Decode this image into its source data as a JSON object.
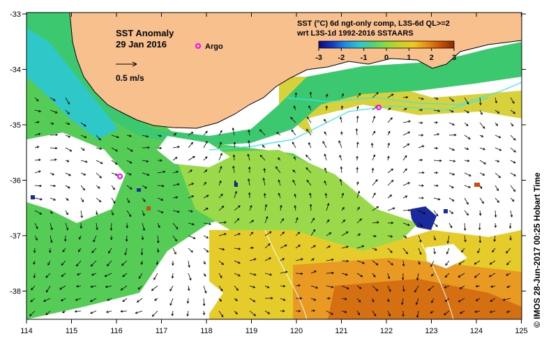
{
  "map": {
    "title": "SST Anomaly",
    "date": "29 Jan 2016",
    "vector_scale_label": "0.5 m/s",
    "argo_label": "Argo",
    "product_line1": "SST (°C) 6d ngt-only comp, L3S-6d QL>=2",
    "product_line2": "wrt L3S-1d 1992-2016 SSTAARS",
    "credit": "© IMOS 28-Jun-2017 00:25 Hobart Time",
    "longitude_labels": [
      "114",
      "115",
      "116",
      "117",
      "118",
      "119",
      "120",
      "121",
      "122",
      "123",
      "124",
      "125"
    ],
    "latitude_labels": [
      "-33",
      "-34",
      "-35",
      "-36",
      "-37",
      "-38"
    ],
    "colorbar": {
      "min": -3,
      "max": 3,
      "tick_labels": [
        "-3",
        "-2",
        "-1",
        "0",
        "1",
        "2",
        "3"
      ],
      "colors": [
        "#0a0a78",
        "#1438c8",
        "#1e90e6",
        "#28c8d2",
        "#50d278",
        "#8cdc3c",
        "#c8d228",
        "#f0c81e",
        "#e68c14",
        "#c8500a",
        "#8c2800"
      ]
    },
    "colors": {
      "land": "#f7c08c",
      "argo_marker": "#ff00ff",
      "background": "#ffffff"
    }
  }
}
